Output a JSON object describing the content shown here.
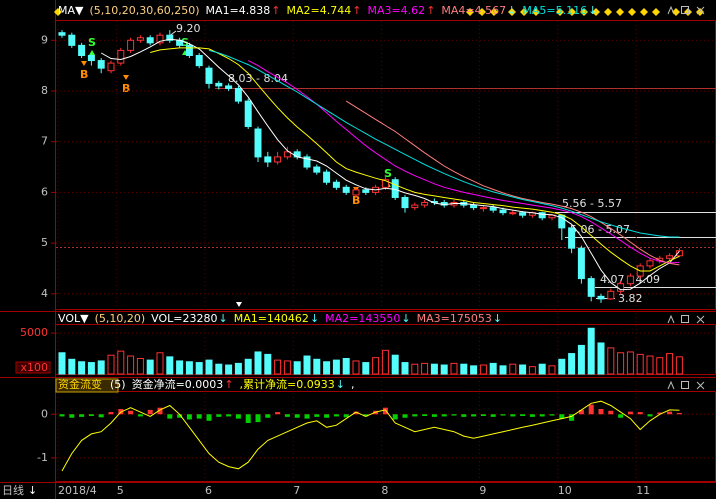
{
  "chart_data": [
    {
      "type": "candlestick",
      "menu": "MA▼",
      "params": "(5,10,20,30,60,250)",
      "categories": [
        "2018/4",
        null,
        null,
        null,
        null,
        null,
        "5",
        null,
        null,
        null,
        null,
        null,
        null,
        null,
        null,
        "6",
        null,
        null,
        null,
        null,
        null,
        null,
        null,
        null,
        "7",
        null,
        null,
        null,
        null,
        null,
        null,
        null,
        null,
        "8",
        null,
        null,
        null,
        null,
        null,
        null,
        null,
        null,
        null,
        "9",
        null,
        null,
        null,
        null,
        null,
        null,
        null,
        "10",
        null,
        null,
        null,
        null,
        null,
        null,
        null,
        "11",
        null,
        null,
        null,
        null
      ],
      "open": [
        9.15,
        9.1,
        8.9,
        8.7,
        8.6,
        8.4,
        8.55,
        8.8,
        9.0,
        9.05,
        8.95,
        9.1,
        9.0,
        8.9,
        8.7,
        8.45,
        8.15,
        8.1,
        8.05,
        7.8,
        7.25,
        6.7,
        6.6,
        6.7,
        6.8,
        6.7,
        6.5,
        6.4,
        6.2,
        6.1,
        5.95,
        6.05,
        6.0,
        6.1,
        6.25,
        5.9,
        5.7,
        5.75,
        5.82,
        5.8,
        5.75,
        5.8,
        5.75,
        5.68,
        5.7,
        5.65,
        5.58,
        5.6,
        5.55,
        5.6,
        5.5,
        5.55,
        5.3,
        4.9,
        4.3,
        3.95,
        3.9,
        4.05,
        4.2,
        4.35,
        4.55,
        4.65,
        4.7,
        4.75
      ],
      "high": [
        9.2,
        9.15,
        8.95,
        8.75,
        8.65,
        8.6,
        8.85,
        9.05,
        9.1,
        9.1,
        9.15,
        9.2,
        9.05,
        8.95,
        8.75,
        8.5,
        8.2,
        8.15,
        8.1,
        7.85,
        7.3,
        6.8,
        6.8,
        6.9,
        6.85,
        6.75,
        6.55,
        6.45,
        6.25,
        6.15,
        6.1,
        6.1,
        6.15,
        6.35,
        6.3,
        5.95,
        5.8,
        5.85,
        5.88,
        5.85,
        5.85,
        5.85,
        5.8,
        5.75,
        5.75,
        5.7,
        5.65,
        5.63,
        5.62,
        5.62,
        5.57,
        5.56,
        5.35,
        4.95,
        4.35,
        4.0,
        4.1,
        4.25,
        4.4,
        4.6,
        4.7,
        4.75,
        4.8,
        4.9
      ],
      "low": [
        9.05,
        8.85,
        8.65,
        8.5,
        8.35,
        8.35,
        8.5,
        8.75,
        8.95,
        8.9,
        8.9,
        8.95,
        8.85,
        8.65,
        8.45,
        8.05,
        8.03,
        8.0,
        7.75,
        7.25,
        6.6,
        6.5,
        6.55,
        6.65,
        6.65,
        6.45,
        6.35,
        6.15,
        6.05,
        5.95,
        5.9,
        5.95,
        5.95,
        6.05,
        5.85,
        5.6,
        5.65,
        5.7,
        5.75,
        5.7,
        5.7,
        5.7,
        5.65,
        5.62,
        5.6,
        5.55,
        5.55,
        5.5,
        5.5,
        5.45,
        5.45,
        5.06,
        4.8,
        4.2,
        3.85,
        3.82,
        3.88,
        4.0,
        4.15,
        4.3,
        4.5,
        4.6,
        4.65,
        4.72
      ],
      "close": [
        9.1,
        8.9,
        8.7,
        8.6,
        8.45,
        8.55,
        8.8,
        9.0,
        9.05,
        8.95,
        9.1,
        9.0,
        8.9,
        8.7,
        8.5,
        8.15,
        8.1,
        8.05,
        7.8,
        7.3,
        6.7,
        6.6,
        6.7,
        6.8,
        6.7,
        6.5,
        6.4,
        6.2,
        6.1,
        6.0,
        6.05,
        6.0,
        6.1,
        6.25,
        5.9,
        5.7,
        5.75,
        5.8,
        5.8,
        5.75,
        5.8,
        5.75,
        5.7,
        5.7,
        5.65,
        5.6,
        5.6,
        5.55,
        5.6,
        5.5,
        5.55,
        5.3,
        4.9,
        4.3,
        3.95,
        3.9,
        4.05,
        4.2,
        4.35,
        4.55,
        4.65,
        4.7,
        4.75,
        4.85
      ],
      "up_color": "#ff3232",
      "down_color": "#54fcfc",
      "series": [
        {
          "name": "MA1=4.838",
          "arrow": "↑",
          "color": "#ffffff",
          "values": [
            null,
            null,
            null,
            null,
            8.75,
            8.64,
            8.62,
            8.68,
            8.77,
            8.87,
            8.98,
            9.02,
            9.0,
            8.93,
            8.83,
            8.65,
            8.47,
            8.3,
            8.12,
            7.88,
            7.59,
            7.31,
            7.04,
            6.82,
            6.7,
            6.66,
            6.62,
            6.52,
            6.38,
            6.24,
            6.15,
            6.07,
            6.05,
            6.08,
            6.06,
            5.99,
            5.94,
            5.88,
            5.79,
            5.76,
            5.78,
            5.78,
            5.76,
            5.74,
            5.72,
            5.68,
            5.65,
            5.62,
            5.6,
            5.57,
            5.56,
            5.5,
            5.37,
            5.13,
            4.8,
            4.47,
            4.22,
            4.08,
            4.09,
            4.21,
            4.36,
            4.5,
            4.61,
            4.84
          ]
        },
        {
          "name": "MA2=4.744",
          "arrow": "↑",
          "color": "#ffff00",
          "values": [
            null,
            null,
            null,
            null,
            null,
            null,
            null,
            null,
            null,
            8.76,
            8.81,
            8.83,
            8.85,
            8.85,
            8.85,
            8.83,
            8.74,
            8.64,
            8.52,
            8.35,
            8.12,
            7.89,
            7.67,
            7.47,
            7.29,
            7.13,
            6.96,
            6.78,
            6.6,
            6.47,
            6.4,
            6.34,
            6.28,
            6.23,
            6.15,
            6.07,
            6.0,
            5.96,
            5.93,
            5.9,
            5.87,
            5.84,
            5.8,
            5.78,
            5.76,
            5.74,
            5.71,
            5.69,
            5.67,
            5.64,
            5.61,
            5.56,
            5.47,
            5.32,
            5.15,
            4.98,
            4.82,
            4.68,
            4.55,
            4.45,
            4.45,
            4.55,
            4.65,
            4.74
          ]
        },
        {
          "name": "MA3=4.62",
          "arrow": "↑",
          "color": "#ff00ff",
          "values": [
            null,
            null,
            null,
            null,
            null,
            null,
            null,
            null,
            null,
            null,
            null,
            null,
            null,
            null,
            null,
            null,
            null,
            null,
            null,
            8.6,
            8.5,
            8.38,
            8.27,
            8.16,
            8.03,
            7.89,
            7.74,
            7.57,
            7.4,
            7.24,
            7.08,
            6.92,
            6.78,
            6.65,
            6.52,
            6.42,
            6.33,
            6.25,
            6.17,
            6.1,
            6.05,
            6.0,
            5.96,
            5.92,
            5.88,
            5.84,
            5.81,
            5.78,
            5.75,
            5.72,
            5.69,
            5.65,
            5.6,
            5.52,
            5.42,
            5.3,
            5.18,
            5.05,
            4.92,
            4.8,
            4.7,
            4.64,
            4.61,
            4.62
          ]
        },
        {
          "name": "MA4=4.567",
          "arrow": "↓",
          "color": "#ff7f7f",
          "values": [
            null,
            null,
            null,
            null,
            null,
            null,
            null,
            null,
            null,
            null,
            null,
            null,
            null,
            null,
            null,
            null,
            null,
            null,
            null,
            null,
            null,
            null,
            null,
            null,
            null,
            null,
            null,
            null,
            null,
            7.8,
            7.68,
            7.56,
            7.44,
            7.32,
            7.2,
            7.06,
            6.92,
            6.78,
            6.65,
            6.52,
            6.41,
            6.31,
            6.22,
            6.13,
            6.06,
            5.99,
            5.93,
            5.88,
            5.84,
            5.8,
            5.77,
            5.73,
            5.68,
            5.61,
            5.52,
            5.41,
            5.29,
            5.16,
            5.02,
            4.88,
            4.76,
            4.66,
            4.6,
            4.57
          ]
        },
        {
          "name": "MA5=5.116",
          "arrow": "↓",
          "color": "#00e0e0",
          "values": [
            null,
            null,
            null,
            null,
            null,
            null,
            null,
            null,
            null,
            null,
            null,
            null,
            null,
            null,
            null,
            8.8,
            8.75,
            8.68,
            8.6,
            8.52,
            8.42,
            8.31,
            8.2,
            8.09,
            7.98,
            7.86,
            7.74,
            7.62,
            7.5,
            7.38,
            7.27,
            7.16,
            7.05,
            6.95,
            6.85,
            6.75,
            6.65,
            6.55,
            6.46,
            6.37,
            6.29,
            6.21,
            6.14,
            6.07,
            6.01,
            5.96,
            5.91,
            5.86,
            5.82,
            5.78,
            5.74,
            5.69,
            5.63,
            5.56,
            5.49,
            5.42,
            5.36,
            5.3,
            5.25,
            5.2,
            5.17,
            5.14,
            5.12,
            5.12
          ]
        }
      ],
      "ylim": [
        3.72,
        9.4
      ],
      "yticks": [
        4,
        5,
        6,
        7,
        8,
        9
      ],
      "annotations": [
        "9.20",
        "8.03 - 8.04",
        "5.56 - 5.57",
        "5.06 - 5.07",
        "4.07 - 4.09",
        "3.82"
      ],
      "buy_label": "B",
      "sell_label": "S"
    },
    {
      "type": "volume",
      "menu": "VOL▼",
      "params": "(5,10,20)",
      "legend": [
        {
          "text": "VOL=23280",
          "arrow": "↓",
          "color": "#ffffff"
        },
        {
          "text": "MA1=140462",
          "arrow": "↓",
          "color": "#ffff00"
        },
        {
          "text": "MA2=143550",
          "arrow": "↓",
          "color": "#ff00ff"
        },
        {
          "text": "MA3=175053",
          "arrow": "↓",
          "color": "#ff7f7f"
        }
      ],
      "values": [
        2600,
        1800,
        1500,
        1400,
        1600,
        2300,
        2800,
        2200,
        1900,
        1700,
        2600,
        2100,
        1600,
        1500,
        1400,
        1700,
        1200,
        1100,
        1300,
        1800,
        2700,
        2400,
        1700,
        1600,
        1500,
        2200,
        1800,
        1500,
        1700,
        1900,
        1600,
        1400,
        2000,
        2900,
        2300,
        1400,
        1200,
        1300,
        1200,
        1100,
        1300,
        1200,
        1000,
        1100,
        1300,
        1000,
        1200,
        1100,
        900,
        1200,
        1000,
        1800,
        2500,
        3500,
        5600,
        3800,
        3200,
        2600,
        2700,
        2400,
        2200,
        2000,
        2500,
        2100
      ],
      "ylim": [
        0,
        6000
      ],
      "yticks": [
        5000
      ],
      "unit": "x100"
    },
    {
      "type": "flow",
      "menu": "资金流变",
      "params": "(5)",
      "legend": [
        {
          "text": "资金净流=0.0003",
          "arrow": "↑",
          "color": "#ffffff"
        },
        {
          "text": ",累计净流=0.0933",
          "arrow": "↓",
          "color": "#ffff00"
        }
      ],
      "trailing": ",",
      "values": [
        -0.05,
        -0.08,
        -0.06,
        -0.04,
        -0.07,
        0.05,
        0.12,
        0.08,
        -0.05,
        0.1,
        0.15,
        -0.1,
        -0.08,
        -0.12,
        -0.1,
        -0.15,
        -0.06,
        -0.05,
        -0.1,
        -0.2,
        -0.18,
        -0.08,
        0.05,
        -0.06,
        -0.08,
        -0.1,
        -0.06,
        -0.08,
        -0.05,
        -0.07,
        0.06,
        -0.05,
        0.08,
        0.15,
        -0.12,
        -0.08,
        -0.05,
        -0.04,
        -0.06,
        -0.05,
        -0.03,
        -0.06,
        -0.05,
        -0.04,
        -0.06,
        -0.03,
        -0.05,
        -0.04,
        -0.06,
        -0.05,
        -0.03,
        -0.1,
        -0.15,
        0.1,
        0.22,
        0.12,
        0.08,
        -0.08,
        0.06,
        0.05,
        -0.05,
        0.04,
        0.06,
        0.03
      ],
      "line_values": [
        -1.3,
        -0.9,
        -0.6,
        -0.45,
        -0.4,
        -0.2,
        0.05,
        0.15,
        0.05,
        -0.05,
        0.1,
        0.2,
        0.0,
        -0.3,
        -0.6,
        -0.9,
        -1.1,
        -1.2,
        -1.25,
        -1.1,
        -0.8,
        -0.6,
        -0.5,
        -0.4,
        -0.3,
        -0.2,
        -0.15,
        -0.3,
        -0.25,
        -0.1,
        0.05,
        -0.05,
        0.05,
        0.1,
        -0.2,
        -0.3,
        -0.4,
        -0.35,
        -0.3,
        -0.35,
        -0.4,
        -0.5,
        -0.55,
        -0.5,
        -0.45,
        -0.4,
        -0.35,
        -0.3,
        -0.25,
        -0.2,
        -0.15,
        -0.1,
        -0.05,
        0.1,
        0.25,
        0.3,
        0.2,
        0.05,
        -0.1,
        -0.35,
        -0.15,
        0.0,
        0.1,
        0.09
      ],
      "line_color": "#ffff00",
      "pos_color": "#ff3232",
      "neg_color": "#00d000",
      "ylim": [
        -1.53,
        0.51
      ],
      "yticks": [
        0,
        -1
      ]
    }
  ],
  "period": "日线",
  "period_arrow": "↓"
}
